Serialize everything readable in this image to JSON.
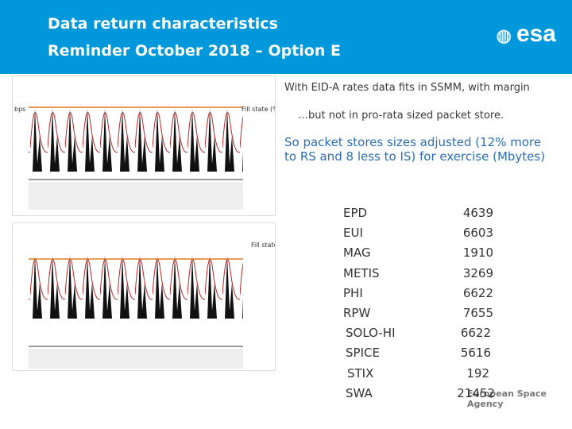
{
  "header": {
    "title": "Data return characteristics",
    "subtitle": "Reminder October 2018 – Option E",
    "logo": "esa"
  },
  "notes": [
    "With EID-A rates data fits in SSMM, with margin",
    "…but not in pro-rata sized packet store.",
    "So packet stores sizes adjusted (12% more to RS and 8 less to IS) for exercise (Mbytes)"
  ],
  "charts": [
    {
      "y_label": "bps",
      "y2_label": "Fill state (%)"
    },
    {
      "y2_label": "Fill state (%)"
    }
  ],
  "table": {
    "rows": [
      [
        "EPD",
        "4639"
      ],
      [
        "EUI",
        "6603"
      ],
      [
        "MAG",
        "1910"
      ],
      [
        "METIS",
        "3269"
      ],
      [
        "PHI",
        "6622"
      ],
      [
        "RPW",
        "7655"
      ],
      [
        "SOLO-HI",
        "6622"
      ],
      [
        "SPICE",
        "5616"
      ],
      [
        "STIX",
        "192"
      ],
      [
        "SWA",
        "21452"
      ]
    ]
  },
  "footer": "European Space Agency"
}
